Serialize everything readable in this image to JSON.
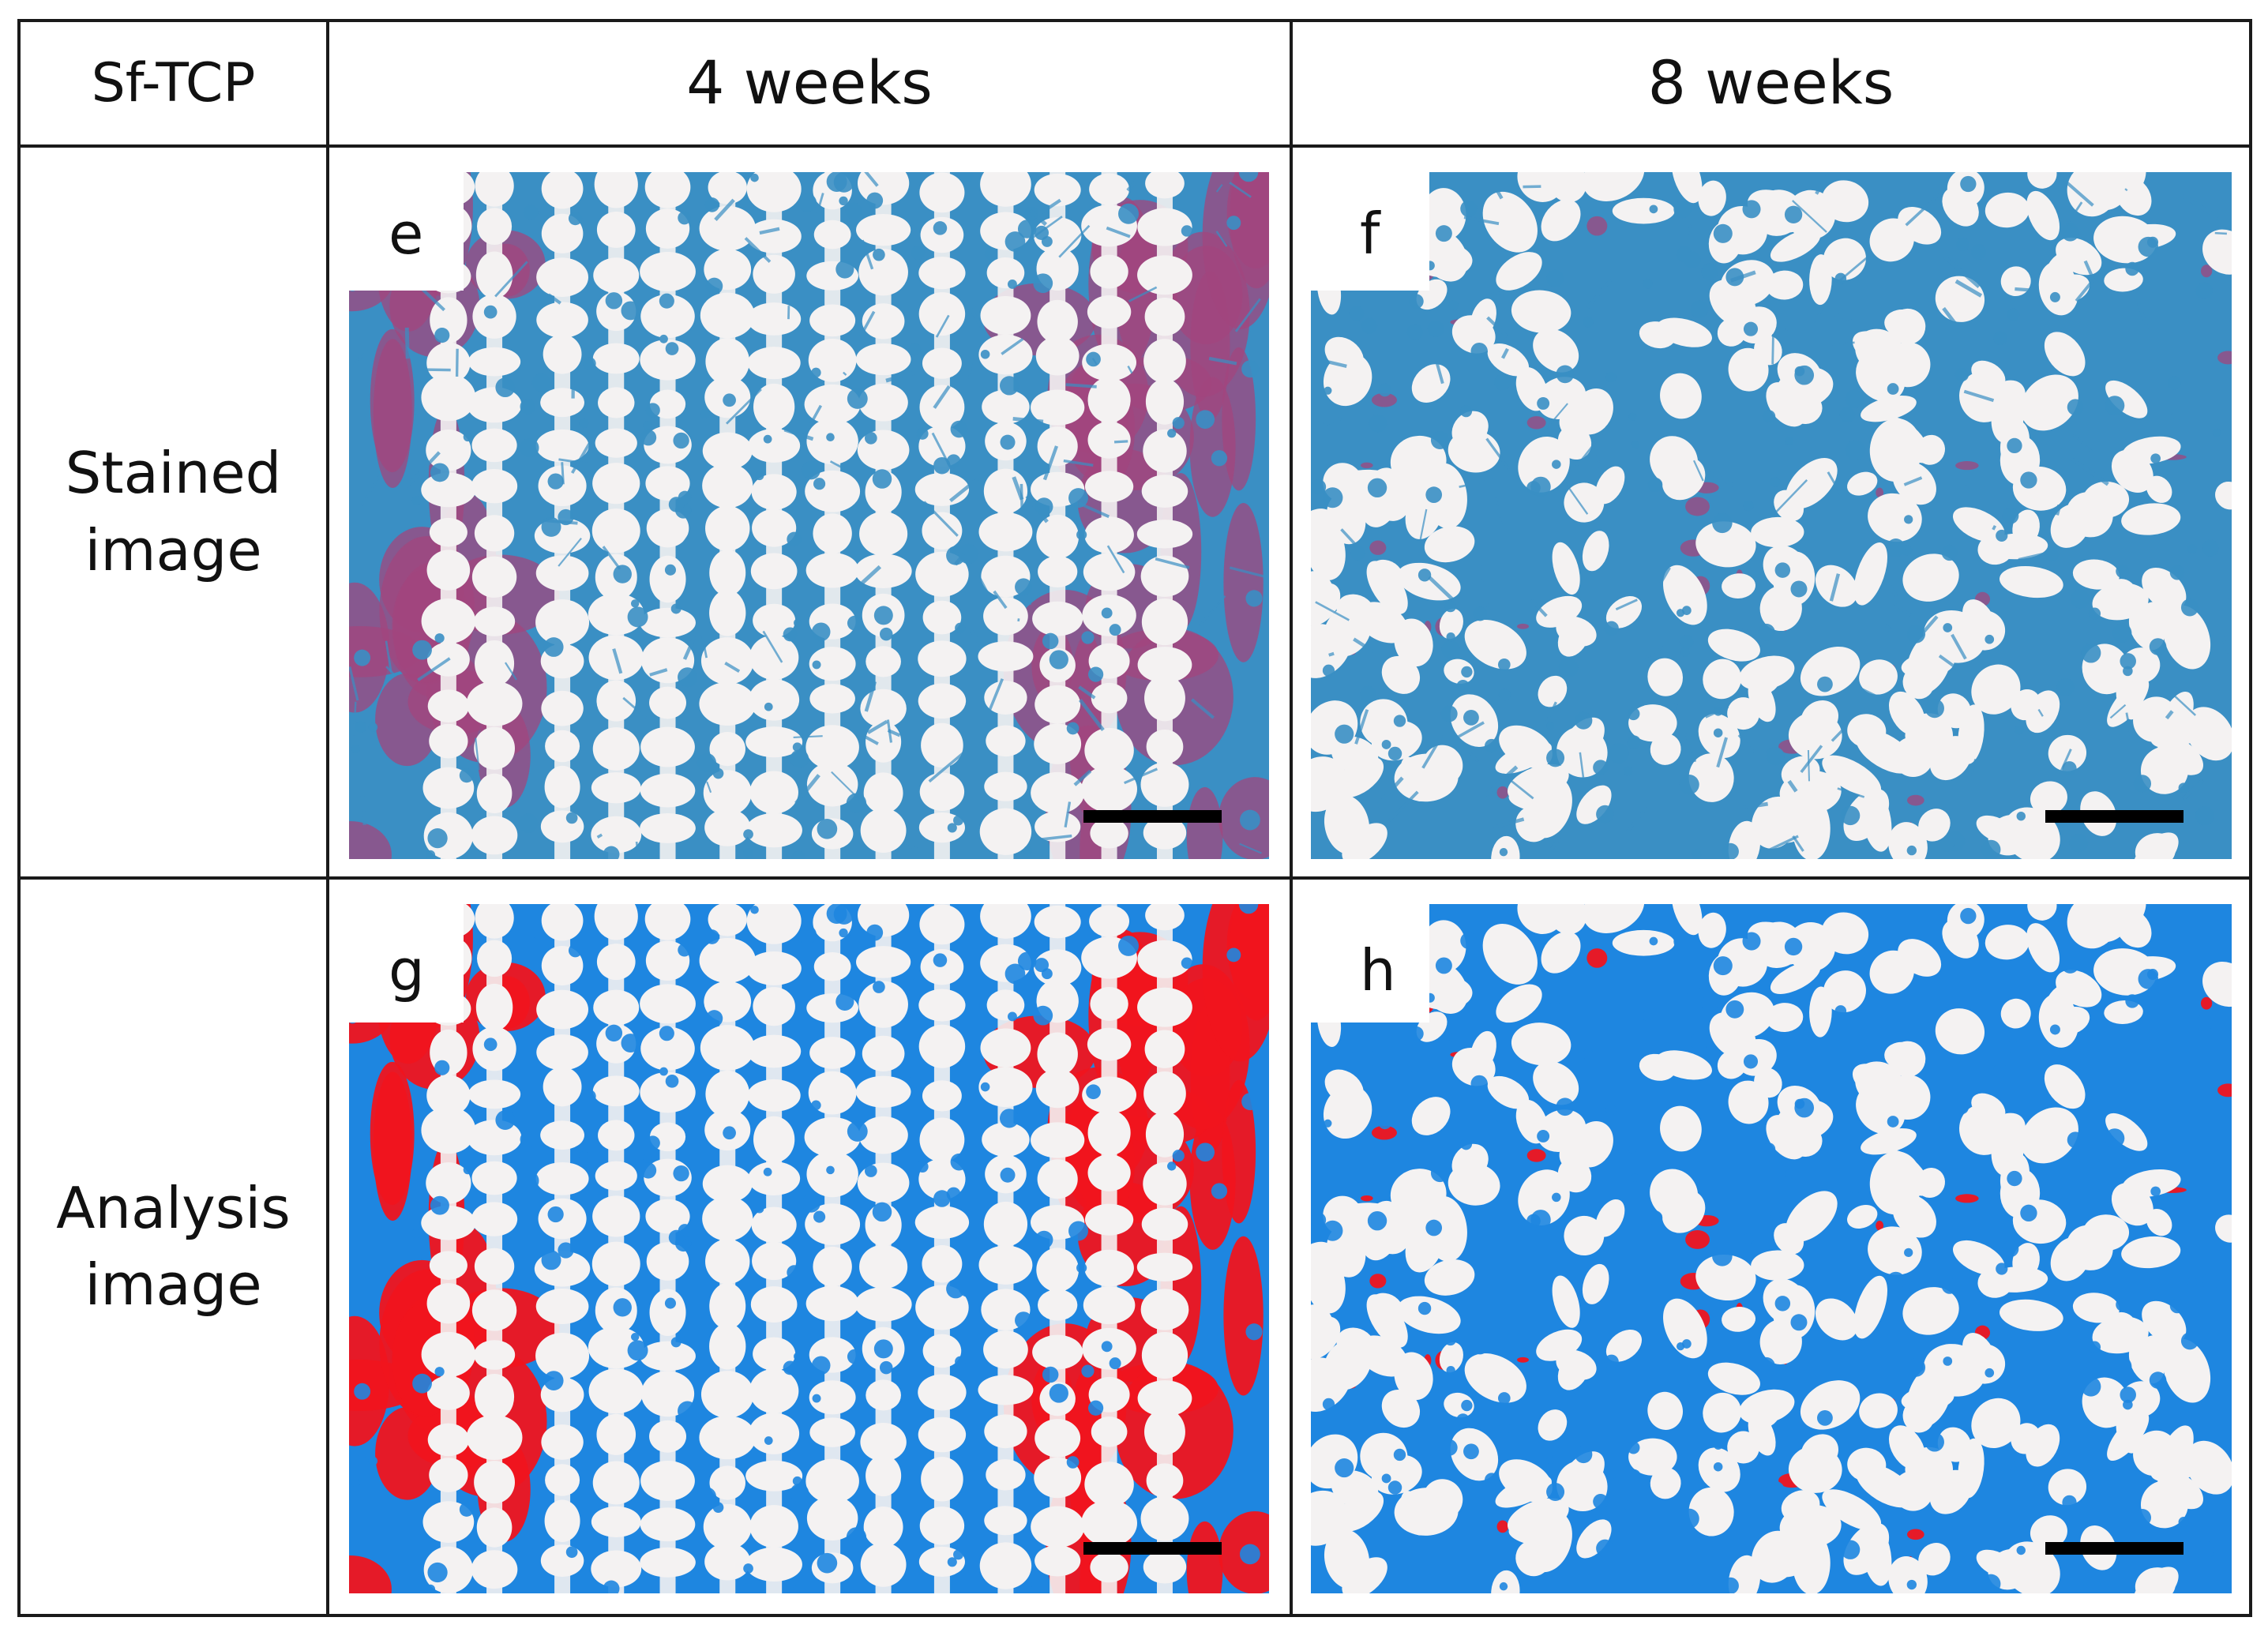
{
  "table": {
    "corner_label": "Sf-TCP",
    "columns": [
      "4 weeks",
      "8 weeks"
    ],
    "rows": [
      "Stained\nimage",
      "Analysis\nimage"
    ]
  },
  "panels": [
    {
      "letter": "e",
      "time": "4 weeks",
      "kind": "stained"
    },
    {
      "letter": "f",
      "time": "8 weeks",
      "kind": "stained"
    },
    {
      "letter": "g",
      "time": "4 weeks",
      "kind": "analysis"
    },
    {
      "letter": "h",
      "time": "8 weeks",
      "kind": "analysis"
    }
  ],
  "colors": {
    "scaffold": "#f4f2f2",
    "stain_blue": "#3a8fc4",
    "stain_magenta": "#a2467e",
    "analysis_blue": "#1e86e0",
    "analysis_red": "#f0141e",
    "scale_bar": "#000000"
  }
}
